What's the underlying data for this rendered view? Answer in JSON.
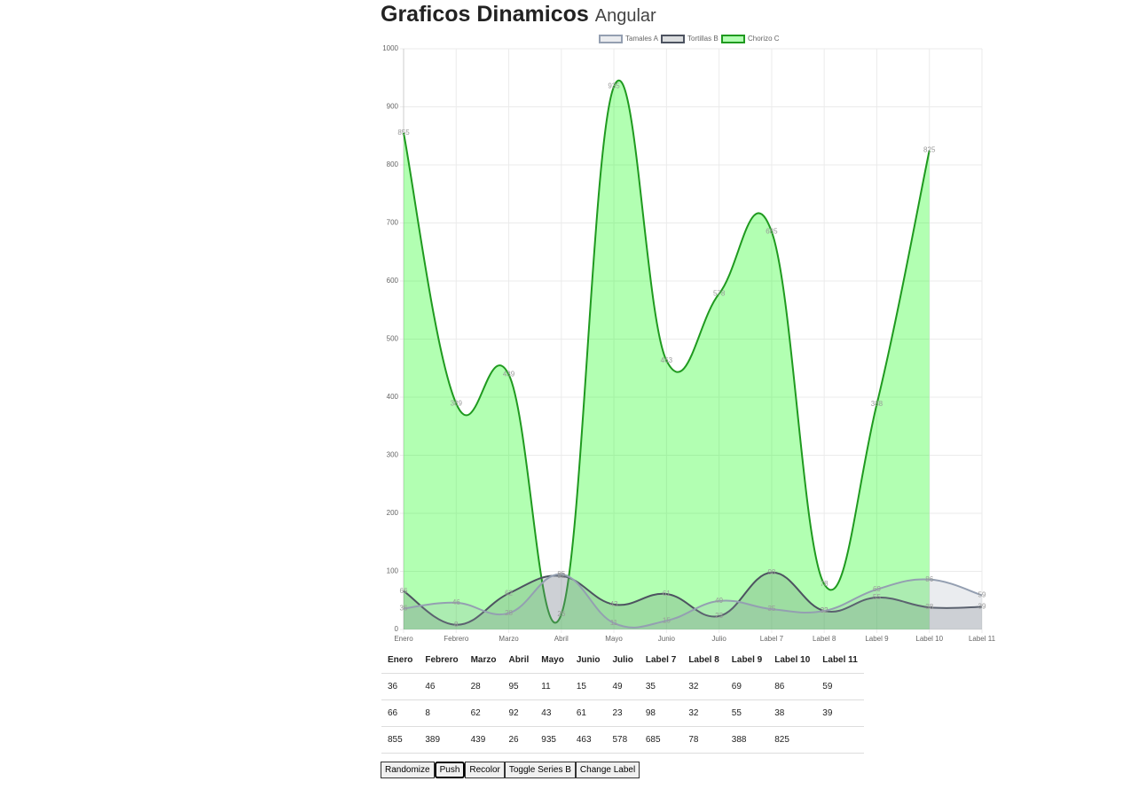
{
  "header": {
    "title": "Graficos Dinamicos",
    "subtitle": "Angular"
  },
  "chart_data": {
    "type": "line",
    "categories": [
      "Enero",
      "Febrero",
      "Marzo",
      "Abril",
      "Mayo",
      "Junio",
      "Julio",
      "Label 7",
      "Label 8",
      "Label 9",
      "Label 10",
      "Label 11"
    ],
    "series": [
      {
        "name": "Tamales A",
        "color": "#949fb1",
        "values": [
          36,
          46,
          28,
          95,
          11,
          15,
          49,
          35,
          32,
          69,
          86,
          59
        ]
      },
      {
        "name": "Tortillas B",
        "color": "#4d5360",
        "values": [
          66,
          8,
          62,
          92,
          43,
          61,
          23,
          98,
          32,
          55,
          38,
          39
        ]
      },
      {
        "name": "Chorizo C",
        "color": "#1f9a1f",
        "values": [
          855,
          389,
          439,
          26,
          935,
          463,
          578,
          685,
          78,
          388,
          825,
          null
        ]
      }
    ],
    "ylim": [
      0,
      1000
    ],
    "yticks": [
      0,
      100,
      200,
      300,
      400,
      500,
      600,
      700,
      800,
      900,
      1000
    ],
    "grid": true,
    "legend": "top",
    "fill": true
  },
  "buttons": [
    "Randomize",
    "Push",
    "Recolor",
    "Toggle Series B",
    "Change Label"
  ]
}
